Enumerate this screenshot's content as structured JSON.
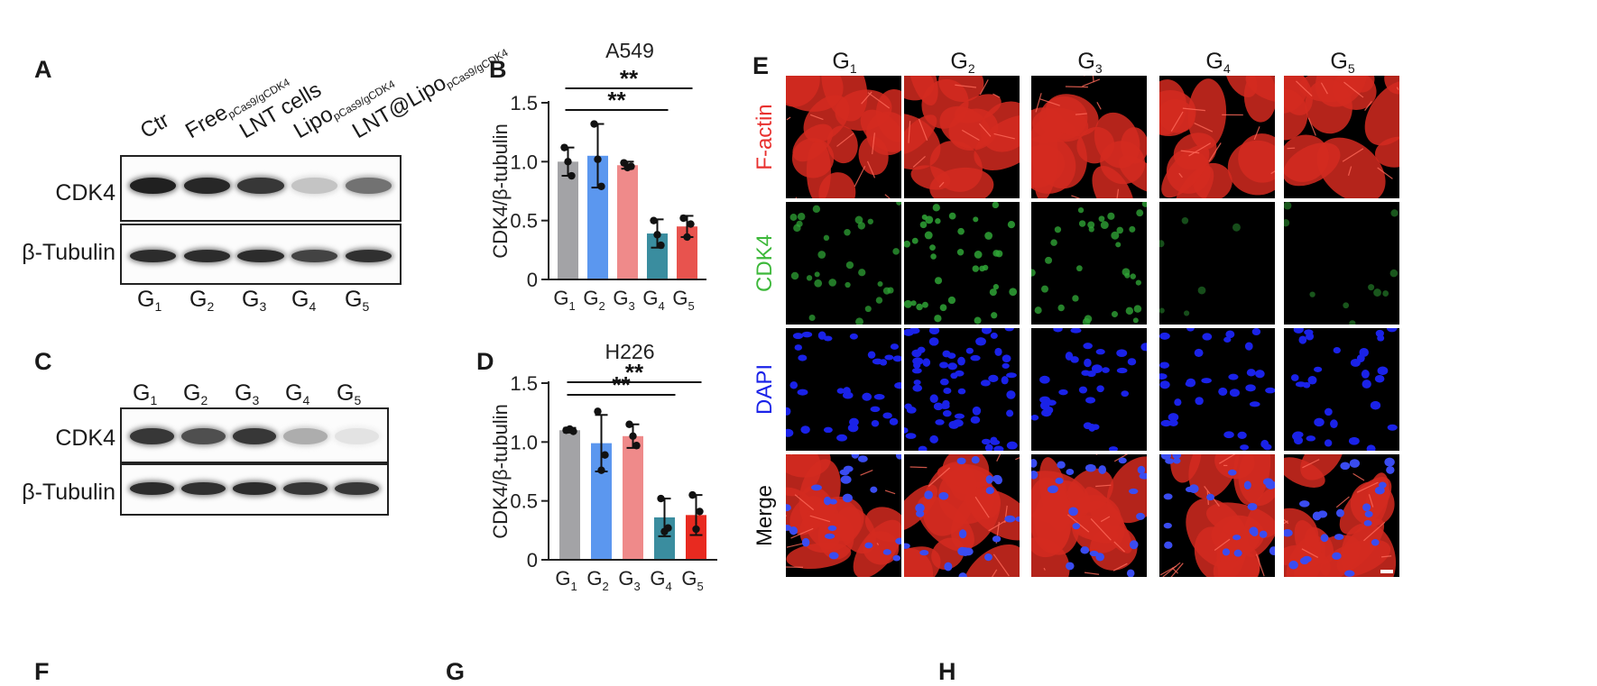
{
  "panels": {
    "A": {
      "letter": "A",
      "lanes": [
        {
          "name": "Ctr",
          "sub": ""
        },
        {
          "name": "Free",
          "sub": "pCas9/gCDK4"
        },
        {
          "name": "LNT cells",
          "sub": ""
        },
        {
          "name": "Lipo",
          "sub": "pCas9/gCDK4"
        },
        {
          "name": "LNT@Lipo",
          "sub": "pCas9/gCDK4"
        }
      ],
      "rows": [
        "CDK4",
        "β-Tubulin"
      ],
      "groups": [
        "G",
        "G",
        "G",
        "G",
        "G"
      ],
      "group_subs": [
        "1",
        "2",
        "3",
        "4",
        "5"
      ],
      "cdk4_intensity": [
        0.95,
        0.92,
        0.85,
        0.25,
        0.6
      ],
      "tubulin_intensity": [
        0.9,
        0.9,
        0.9,
        0.8,
        0.88
      ]
    },
    "C": {
      "letter": "C",
      "groups": [
        "G",
        "G",
        "G",
        "G",
        "G"
      ],
      "group_subs": [
        "1",
        "2",
        "3",
        "4",
        "5"
      ],
      "rows": [
        "CDK4",
        "β-Tubulin"
      ],
      "cdk4_intensity": [
        0.85,
        0.75,
        0.85,
        0.35,
        0.12
      ],
      "tubulin_intensity": [
        0.9,
        0.88,
        0.9,
        0.85,
        0.85
      ]
    },
    "B": {
      "letter": "B"
    },
    "D": {
      "letter": "D"
    },
    "E": {
      "letter": "E",
      "columns": [
        "G",
        "G",
        "G",
        "G",
        "G"
      ],
      "column_subs": [
        "1",
        "2",
        "3",
        "4",
        "5"
      ],
      "rows": [
        "F-actin",
        "CDK4",
        "DAPI",
        "Merge"
      ],
      "row_colors": [
        "#e8302e",
        "#3db83a",
        "#1a22e8",
        "#111111"
      ],
      "cdk4_density": [
        0.7,
        0.9,
        0.8,
        0.15,
        0.25
      ]
    },
    "bottom_letters": [
      "F",
      "G",
      "H"
    ]
  },
  "chart_data": [
    {
      "type": "bar",
      "title": "A549",
      "ylabel": "CDK4/β-tubulin",
      "xlabel": "",
      "categories": [
        "G1",
        "G2",
        "G3",
        "G4",
        "G5"
      ],
      "category_base": [
        "G",
        "G",
        "G",
        "G",
        "G"
      ],
      "category_subs": [
        "1",
        "2",
        "3",
        "4",
        "5"
      ],
      "values": [
        1.0,
        1.05,
        0.97,
        0.39,
        0.45
      ],
      "errors": [
        0.12,
        0.27,
        0.03,
        0.12,
        0.09
      ],
      "points": [
        [
          1.12,
          1.0,
          0.88
        ],
        [
          1.32,
          1.02,
          0.79
        ],
        [
          0.99,
          0.95,
          0.96
        ],
        [
          0.5,
          0.38,
          0.29
        ],
        [
          0.52,
          0.36,
          0.47
        ]
      ],
      "colors": [
        "#a3a3a6",
        "#5b97ef",
        "#ef8a8a",
        "#3a8d9f",
        "#e8534e"
      ],
      "ylim": [
        0,
        1.5
      ],
      "yticks": [
        "0",
        "0.5",
        "1.0",
        "1.5"
      ],
      "significance": [
        {
          "from": 0,
          "to": 3,
          "label": "**"
        },
        {
          "from": 0,
          "to": 4,
          "label": "**"
        }
      ]
    },
    {
      "type": "bar",
      "title": "H226",
      "ylabel": "CDK4/β-tubulin",
      "xlabel": "",
      "categories": [
        "G1",
        "G2",
        "G3",
        "G4",
        "G5"
      ],
      "category_base": [
        "G",
        "G",
        "G",
        "G",
        "G"
      ],
      "category_subs": [
        "1",
        "2",
        "3",
        "4",
        "5"
      ],
      "values": [
        1.1,
        0.99,
        1.05,
        0.36,
        0.38
      ],
      "errors": [
        0.02,
        0.24,
        0.1,
        0.16,
        0.17
      ],
      "points": [
        [
          1.1,
          1.11,
          1.09
        ],
        [
          1.26,
          0.76,
          0.89
        ],
        [
          1.15,
          1.05,
          0.97
        ],
        [
          0.52,
          0.24,
          0.27
        ],
        [
          0.55,
          0.26,
          0.41
        ]
      ],
      "colors": [
        "#a3a3a6",
        "#5b97ef",
        "#ef8a8a",
        "#3a8d9f",
        "#e82a20"
      ],
      "ylim": [
        0,
        1.5
      ],
      "yticks": [
        "0",
        "0.5",
        "1.0",
        "1.5"
      ],
      "significance": [
        {
          "from": 0,
          "to": 3,
          "label": "**"
        },
        {
          "from": 0,
          "to": 4,
          "label": "**"
        }
      ]
    }
  ]
}
